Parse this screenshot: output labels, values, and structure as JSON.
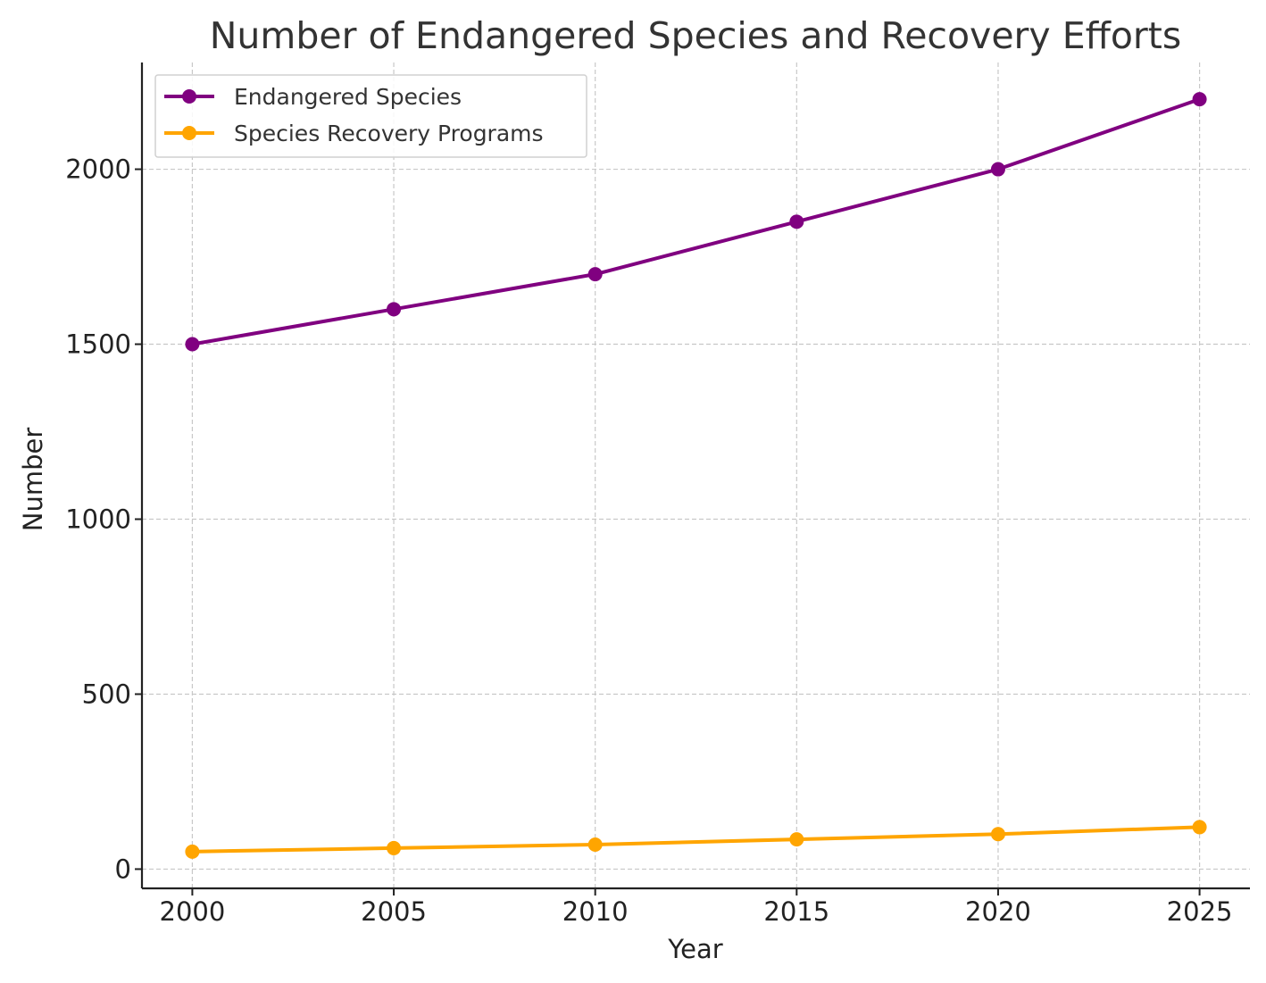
{
  "chart_data": {
    "type": "line",
    "title": "Number of Endangered Species and Recovery Efforts",
    "xlabel": "Year",
    "ylabel": "Number",
    "x": [
      2000,
      2005,
      2010,
      2015,
      2020,
      2025
    ],
    "xticks": [
      "2000",
      "2005",
      "2010",
      "2015",
      "2020",
      "2025"
    ],
    "yticks": [
      "0",
      "500",
      "1000",
      "1500",
      "2000"
    ],
    "ylim": [
      -55,
      2305
    ],
    "xlim": [
      1998.75,
      2026.25
    ],
    "grid": true,
    "legend_position": "top-left",
    "series": [
      {
        "name": "Endangered Species",
        "color": "#800080",
        "values": [
          1500,
          1600,
          1700,
          1850,
          2000,
          2200
        ]
      },
      {
        "name": "Species Recovery Programs",
        "color": "#FFA500",
        "values": [
          50,
          60,
          70,
          85,
          100,
          120
        ]
      }
    ]
  }
}
